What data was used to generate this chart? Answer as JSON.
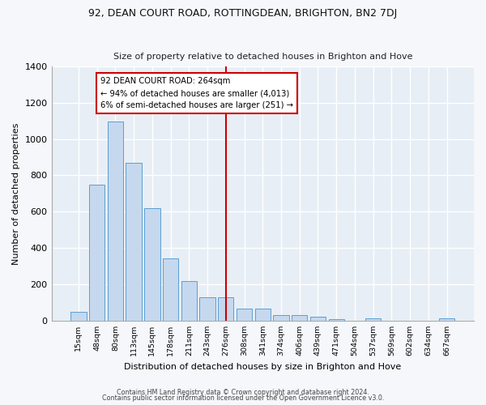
{
  "title": "92, DEAN COURT ROAD, ROTTINGDEAN, BRIGHTON, BN2 7DJ",
  "subtitle": "Size of property relative to detached houses in Brighton and Hove",
  "xlabel": "Distribution of detached houses by size in Brighton and Hove",
  "ylabel": "Number of detached properties",
  "categories": [
    "15sqm",
    "48sqm",
    "80sqm",
    "113sqm",
    "145sqm",
    "178sqm",
    "211sqm",
    "243sqm",
    "276sqm",
    "308sqm",
    "341sqm",
    "374sqm",
    "406sqm",
    "439sqm",
    "471sqm",
    "504sqm",
    "537sqm",
    "569sqm",
    "602sqm",
    "634sqm",
    "667sqm"
  ],
  "values": [
    50,
    750,
    1095,
    870,
    620,
    345,
    220,
    130,
    130,
    65,
    65,
    30,
    30,
    20,
    10,
    0,
    13,
    0,
    0,
    0,
    15
  ],
  "bar_color": "#c5d8ee",
  "bar_edge_color": "#5a9fd4",
  "vline_x_index": 8,
  "vline_color": "#cc0000",
  "annotation_text": "92 DEAN COURT ROAD: 264sqm\n← 94% of detached houses are smaller (4,013)\n6% of semi-detached houses are larger (251) →",
  "annotation_box_color": "#ffffff",
  "annotation_box_edge": "#cc0000",
  "ylim": [
    0,
    1400
  ],
  "yticks": [
    0,
    200,
    400,
    600,
    800,
    1000,
    1200,
    1400
  ],
  "plot_bg_color": "#e8eef5",
  "fig_bg_color": "#f5f7fa",
  "grid_color": "#ffffff",
  "footer1": "Contains HM Land Registry data © Crown copyright and database right 2024.",
  "footer2": "Contains public sector information licensed under the Open Government Licence v3.0."
}
